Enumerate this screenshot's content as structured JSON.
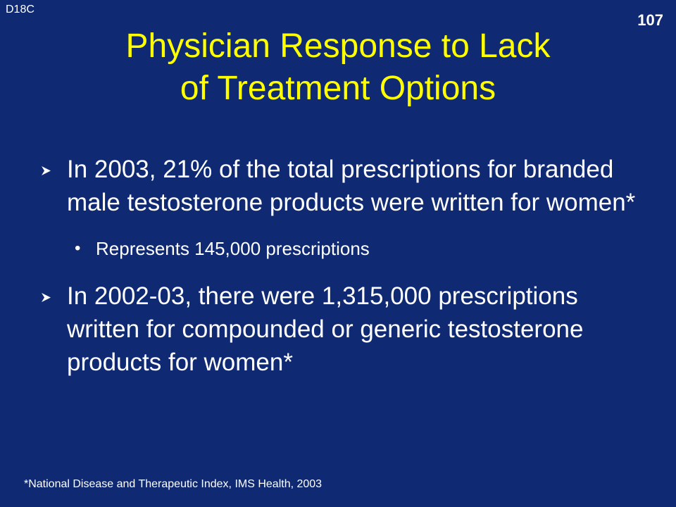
{
  "slide": {
    "code": "D18C",
    "page_number": "107",
    "title_line_1": "Physician Response to Lack",
    "title_line_2": "of Treatment Options",
    "bullets": [
      {
        "text": "In 2003, 21% of the total prescriptions for branded male testosterone products were written for women*"
      },
      {
        "text": "In 2002-03, there were 1,315,000 prescriptions written for compounded or generic testosterone products for women*"
      }
    ],
    "sub_bullet": {
      "symbol": "•",
      "text": "Represents 145,000 prescriptions"
    },
    "footnote": "*National Disease and Therapeutic Index, IMS Health, 2003",
    "icons": {
      "bullet_marker": "arrowhead-icon"
    },
    "colors": {
      "background": "#0f2a72",
      "title": "#ffff00",
      "text": "#ffffff"
    }
  }
}
